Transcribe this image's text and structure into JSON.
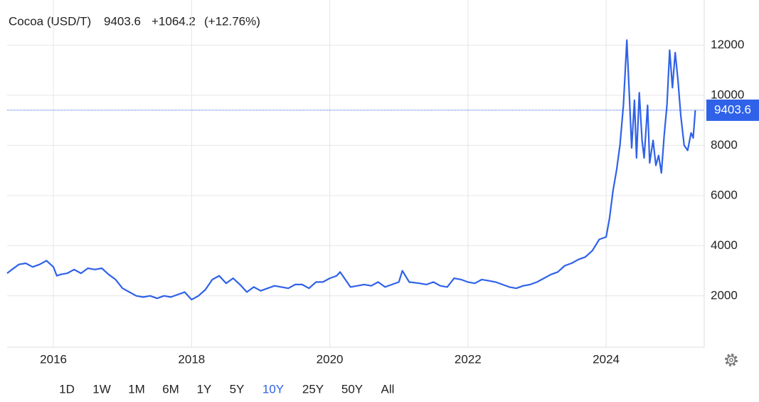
{
  "chart_data": {
    "type": "line",
    "title": "Cocoa (USD/T)",
    "last_value": 9403.6,
    "change": "+1064.2",
    "change_percent": "(+12.76%)",
    "color": "#2f62e8",
    "change_color": "#2fb83a",
    "grid": true,
    "x": [
      2015.33,
      2015.4,
      2015.5,
      2015.6,
      2015.7,
      2015.8,
      2015.9,
      2016.0,
      2016.05,
      2016.1,
      2016.2,
      2016.3,
      2016.4,
      2016.5,
      2016.6,
      2016.7,
      2016.8,
      2016.9,
      2017.0,
      2017.1,
      2017.2,
      2017.3,
      2017.4,
      2017.5,
      2017.6,
      2017.7,
      2017.8,
      2017.9,
      2018.0,
      2018.1,
      2018.2,
      2018.3,
      2018.4,
      2018.5,
      2018.6,
      2018.7,
      2018.8,
      2018.9,
      2019.0,
      2019.1,
      2019.2,
      2019.3,
      2019.4,
      2019.5,
      2019.6,
      2019.7,
      2019.8,
      2019.9,
      2020.0,
      2020.1,
      2020.15,
      2020.3,
      2020.4,
      2020.5,
      2020.6,
      2020.7,
      2020.8,
      2020.9,
      2021.0,
      2021.05,
      2021.15,
      2021.3,
      2021.4,
      2021.5,
      2021.6,
      2021.7,
      2021.8,
      2021.9,
      2022.0,
      2022.1,
      2022.2,
      2022.3,
      2022.4,
      2022.5,
      2022.6,
      2022.7,
      2022.8,
      2022.9,
      2023.0,
      2023.1,
      2023.2,
      2023.3,
      2023.4,
      2023.5,
      2023.6,
      2023.7,
      2023.8,
      2023.9,
      2024.0,
      2024.05,
      2024.1,
      2024.15,
      2024.2,
      2024.25,
      2024.3,
      2024.33,
      2024.37,
      2024.41,
      2024.44,
      2024.48,
      2024.52,
      2024.55,
      2024.6,
      2024.63,
      2024.68,
      2024.72,
      2024.76,
      2024.8,
      2024.84,
      2024.88,
      2024.92,
      2024.96,
      2025.0,
      2025.04,
      2025.08,
      2025.13,
      2025.18,
      2025.23,
      2025.26,
      2025.29
    ],
    "values": [
      2900,
      3050,
      3250,
      3300,
      3150,
      3250,
      3400,
      3150,
      2800,
      2850,
      2900,
      3050,
      2900,
      3100,
      3050,
      3100,
      2850,
      2650,
      2300,
      2150,
      2000,
      1950,
      2000,
      1900,
      2000,
      1950,
      2050,
      2150,
      1850,
      2000,
      2250,
      2650,
      2800,
      2500,
      2700,
      2450,
      2150,
      2350,
      2200,
      2300,
      2400,
      2350,
      2300,
      2450,
      2450,
      2300,
      2550,
      2550,
      2700,
      2800,
      2950,
      2350,
      2400,
      2450,
      2400,
      2550,
      2350,
      2450,
      2550,
      3000,
      2550,
      2500,
      2450,
      2550,
      2400,
      2350,
      2700,
      2650,
      2550,
      2500,
      2650,
      2600,
      2550,
      2450,
      2350,
      2300,
      2400,
      2450,
      2550,
      2700,
      2850,
      2950,
      3200,
      3300,
      3450,
      3550,
      3800,
      4250,
      4350,
      5100,
      6200,
      7000,
      8000,
      9600,
      12200,
      10400,
      7900,
      9800,
      7500,
      10100,
      8200,
      7500,
      9600,
      7300,
      8200,
      7200,
      7600,
      6900,
      8400,
      9600,
      11800,
      10300,
      11700,
      10600,
      9200,
      8000,
      7800,
      8500,
      8300,
      9403.6
    ],
    "xlim": [
      2015.33,
      2025.42
    ],
    "xticks": [
      2016,
      2018,
      2020,
      2022,
      2024
    ],
    "ylim": [
      -50,
      13800
    ],
    "yticks": [
      2000,
      4000,
      6000,
      8000,
      10000,
      12000
    ],
    "range_buttons": [
      "1D",
      "1W",
      "1M",
      "6M",
      "1Y",
      "5Y",
      "10Y",
      "25Y",
      "50Y",
      "All"
    ],
    "selected_range_index": 6
  }
}
